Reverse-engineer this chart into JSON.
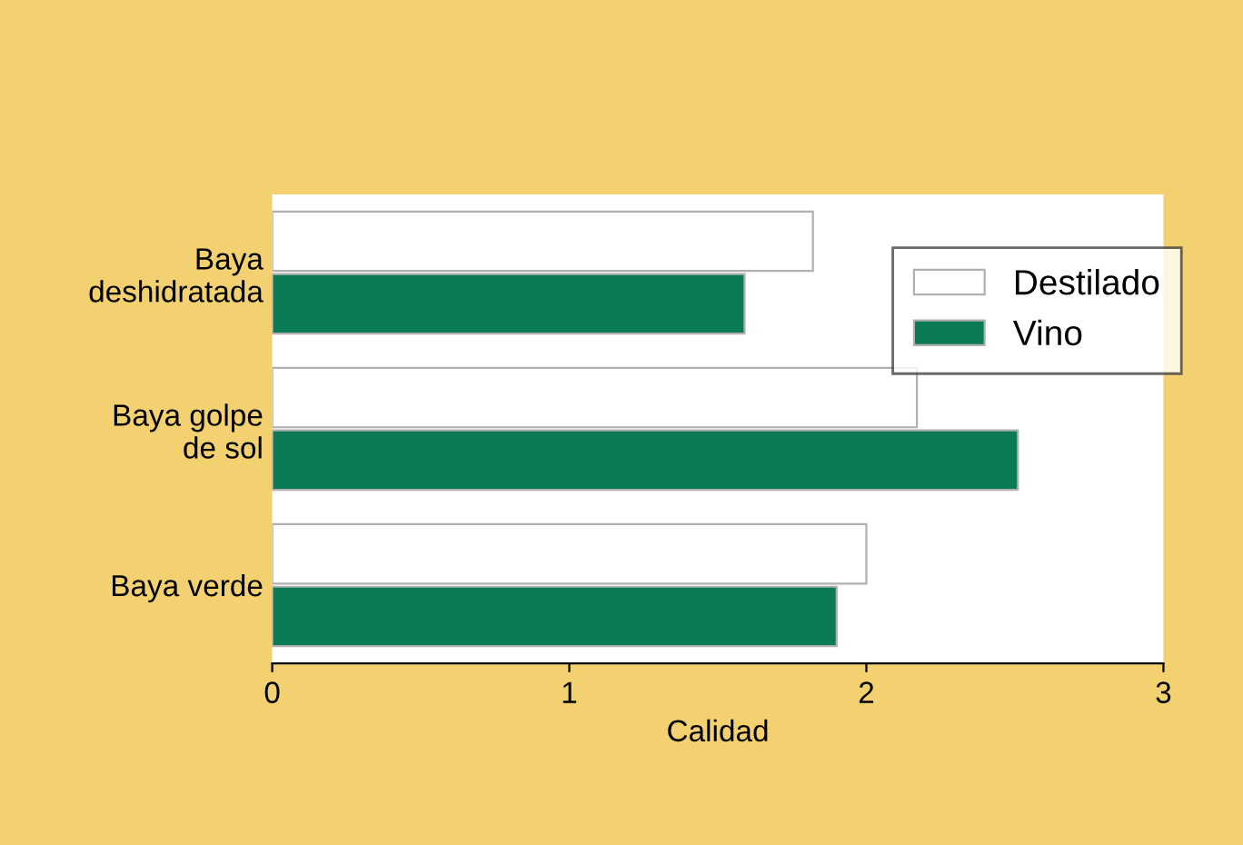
{
  "chart_data": {
    "type": "bar",
    "orientation": "horizontal",
    "xlabel": "Calidad",
    "categories": [
      "Baya\ndeshidratada",
      "Baya golpe\nde sol",
      "Baya verde"
    ],
    "series": [
      {
        "name": "Destilado",
        "color": "#ffffff",
        "values": [
          1.82,
          2.17,
          2.0
        ]
      },
      {
        "name": "Vino",
        "color": "#0b7a57",
        "values": [
          1.59,
          2.51,
          1.9
        ]
      }
    ],
    "xlim": [
      0,
      3
    ],
    "xticks": [
      0,
      1,
      2,
      3
    ],
    "grid": false,
    "legend": "top right"
  }
}
